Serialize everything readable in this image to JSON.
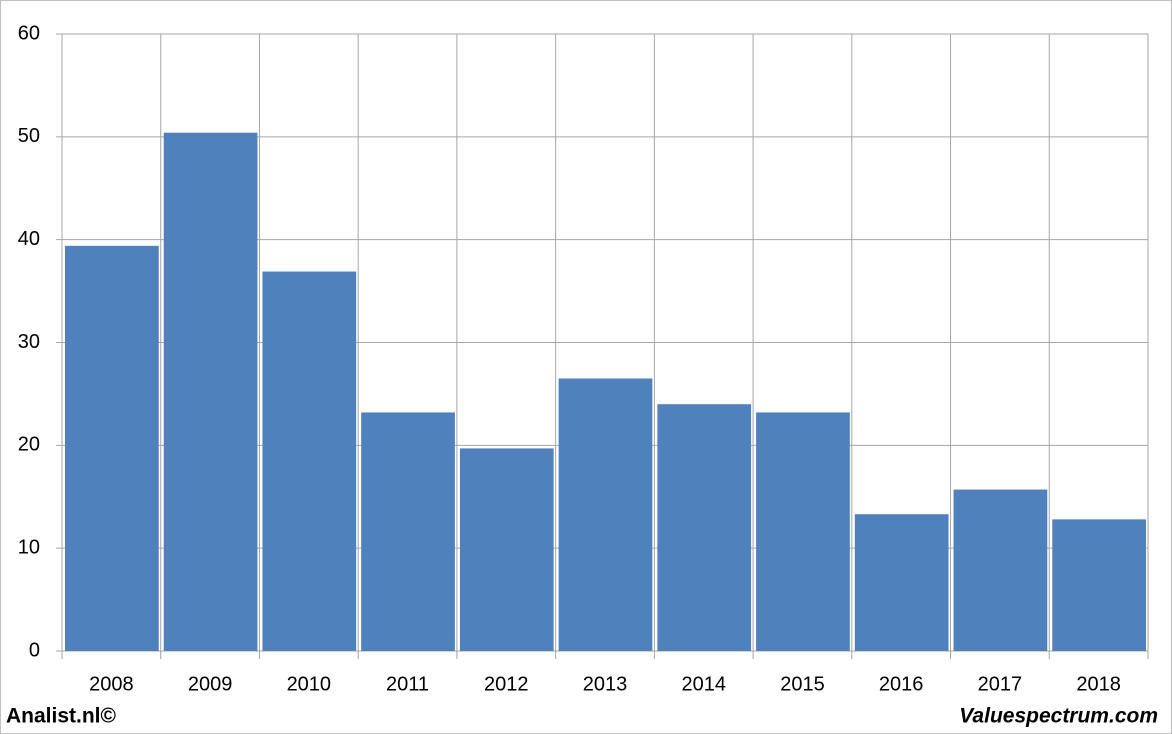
{
  "chart_data": {
    "type": "bar",
    "categories": [
      "2008",
      "2009",
      "2010",
      "2011",
      "2012",
      "2013",
      "2014",
      "2015",
      "2016",
      "2017",
      "2018"
    ],
    "values": [
      39.4,
      50.4,
      36.9,
      23.2,
      19.7,
      26.5,
      24.0,
      23.2,
      13.3,
      15.7,
      12.8
    ],
    "color": "#4f81bd",
    "ylim": [
      0,
      60
    ],
    "yticks": [
      0,
      10,
      20,
      30,
      40,
      50,
      60
    ],
    "grid": true
  },
  "footer": {
    "left": "Analist.nl©",
    "right": "Valuespectrum.com"
  }
}
